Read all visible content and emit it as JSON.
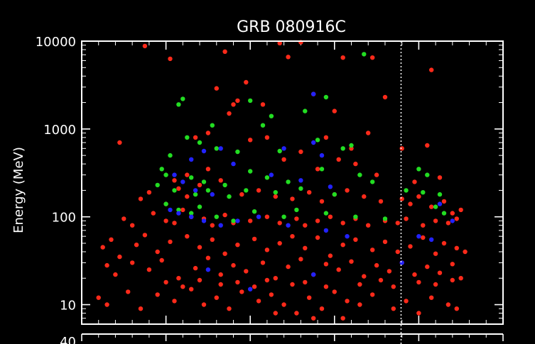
{
  "chart_data": {
    "type": "scatter",
    "title": "GRB 080916C",
    "xlabel": "",
    "ylabel": "Energy (MeV)",
    "y_scale": "log",
    "ylim": [
      6,
      10000
    ],
    "y_ticks": [
      {
        "value": 10000,
        "label": "10000"
      },
      {
        "value": 1000,
        "label": "1000"
      },
      {
        "value": 100,
        "label": "100"
      },
      {
        "value": 10,
        "label": "10"
      }
    ],
    "bottom_partial_label": "40",
    "xlim": [
      0,
      1
    ],
    "marker_line_x": 0.758,
    "grid": false,
    "legend": "none",
    "colors": {
      "background": "#000000",
      "frame": "#ffffff",
      "red_series": "#ff2a1a",
      "green_series": "#22dd22",
      "blue_series": "#2222ff"
    },
    "series": [
      {
        "color": "#ff2a1a",
        "points": [
          [
            0.15,
            8800
          ],
          [
            0.21,
            6300
          ],
          [
            0.34,
            7600
          ],
          [
            0.47,
            9500
          ],
          [
            0.52,
            9700
          ],
          [
            0.49,
            6600
          ],
          [
            0.62,
            6500
          ],
          [
            0.69,
            6500
          ],
          [
            0.83,
            4700
          ],
          [
            0.39,
            3400
          ],
          [
            0.32,
            2900
          ],
          [
            0.37,
            2100
          ],
          [
            0.43,
            1900
          ],
          [
            0.55,
            2500
          ],
          [
            0.72,
            2300
          ],
          [
            0.6,
            1600
          ],
          [
            0.35,
            1500
          ],
          [
            0.36,
            1900
          ],
          [
            0.09,
            700
          ],
          [
            0.76,
            600
          ],
          [
            0.82,
            650
          ],
          [
            0.68,
            900
          ],
          [
            0.58,
            800
          ],
          [
            0.4,
            750
          ],
          [
            0.27,
            800
          ],
          [
            0.3,
            900
          ],
          [
            0.44,
            800
          ],
          [
            0.52,
            550
          ],
          [
            0.56,
            350
          ],
          [
            0.65,
            400
          ],
          [
            0.7,
            300
          ],
          [
            0.79,
            250
          ],
          [
            0.85,
            280
          ],
          [
            0.64,
            600
          ],
          [
            0.48,
            450
          ],
          [
            0.61,
            450
          ],
          [
            0.14,
            160
          ],
          [
            0.16,
            190
          ],
          [
            0.23,
            210
          ],
          [
            0.25,
            170
          ],
          [
            0.28,
            230
          ],
          [
            0.33,
            260
          ],
          [
            0.38,
            180
          ],
          [
            0.42,
            200
          ],
          [
            0.46,
            170
          ],
          [
            0.5,
            160
          ],
          [
            0.54,
            190
          ],
          [
            0.57,
            150
          ],
          [
            0.6,
            180
          ],
          [
            0.63,
            200
          ],
          [
            0.67,
            170
          ],
          [
            0.71,
            150
          ],
          [
            0.76,
            160
          ],
          [
            0.78,
            140
          ],
          [
            0.8,
            170
          ],
          [
            0.83,
            130
          ],
          [
            0.86,
            150
          ],
          [
            0.88,
            110
          ],
          [
            0.9,
            120
          ],
          [
            0.1,
            95
          ],
          [
            0.12,
            80
          ],
          [
            0.17,
            110
          ],
          [
            0.2,
            90
          ],
          [
            0.22,
            85
          ],
          [
            0.24,
            120
          ],
          [
            0.26,
            100
          ],
          [
            0.29,
            95
          ],
          [
            0.31,
            80
          ],
          [
            0.34,
            105
          ],
          [
            0.36,
            85
          ],
          [
            0.4,
            90
          ],
          [
            0.44,
            100
          ],
          [
            0.47,
            85
          ],
          [
            0.51,
            95
          ],
          [
            0.53,
            80
          ],
          [
            0.56,
            90
          ],
          [
            0.59,
            100
          ],
          [
            0.62,
            85
          ],
          [
            0.65,
            95
          ],
          [
            0.68,
            80
          ],
          [
            0.72,
            90
          ],
          [
            0.75,
            85
          ],
          [
            0.77,
            95
          ],
          [
            0.81,
            80
          ],
          [
            0.84,
            90
          ],
          [
            0.87,
            85
          ],
          [
            0.89,
            95
          ],
          [
            0.05,
            45
          ],
          [
            0.07,
            55
          ],
          [
            0.09,
            35
          ],
          [
            0.13,
            48
          ],
          [
            0.15,
            62
          ],
          [
            0.18,
            40
          ],
          [
            0.21,
            52
          ],
          [
            0.25,
            60
          ],
          [
            0.28,
            45
          ],
          [
            0.31,
            55
          ],
          [
            0.34,
            38
          ],
          [
            0.37,
            48
          ],
          [
            0.41,
            56
          ],
          [
            0.44,
            42
          ],
          [
            0.47,
            50
          ],
          [
            0.5,
            60
          ],
          [
            0.53,
            44
          ],
          [
            0.56,
            58
          ],
          [
            0.59,
            36
          ],
          [
            0.62,
            48
          ],
          [
            0.65,
            55
          ],
          [
            0.69,
            42
          ],
          [
            0.72,
            52
          ],
          [
            0.75,
            40
          ],
          [
            0.78,
            46
          ],
          [
            0.81,
            58
          ],
          [
            0.84,
            38
          ],
          [
            0.86,
            50
          ],
          [
            0.89,
            44
          ],
          [
            0.91,
            40
          ],
          [
            0.06,
            28
          ],
          [
            0.08,
            22
          ],
          [
            0.12,
            30
          ],
          [
            0.16,
            25
          ],
          [
            0.19,
            32
          ],
          [
            0.23,
            20
          ],
          [
            0.27,
            26
          ],
          [
            0.3,
            34
          ],
          [
            0.33,
            22
          ],
          [
            0.36,
            28
          ],
          [
            0.39,
            24
          ],
          [
            0.43,
            30
          ],
          [
            0.46,
            20
          ],
          [
            0.49,
            27
          ],
          [
            0.52,
            33
          ],
          [
            0.55,
            22
          ],
          [
            0.58,
            29
          ],
          [
            0.61,
            25
          ],
          [
            0.64,
            31
          ],
          [
            0.67,
            21
          ],
          [
            0.7,
            28
          ],
          [
            0.73,
            24
          ],
          [
            0.76,
            30
          ],
          [
            0.79,
            22
          ],
          [
            0.82,
            27
          ],
          [
            0.85,
            23
          ],
          [
            0.88,
            29
          ],
          [
            0.9,
            20
          ],
          [
            0.04,
            12
          ],
          [
            0.06,
            10
          ],
          [
            0.11,
            14
          ],
          [
            0.14,
            9
          ],
          [
            0.18,
            13
          ],
          [
            0.22,
            11
          ],
          [
            0.26,
            15
          ],
          [
            0.29,
            10
          ],
          [
            0.32,
            12
          ],
          [
            0.35,
            9
          ],
          [
            0.38,
            14
          ],
          [
            0.42,
            11
          ],
          [
            0.45,
            13
          ],
          [
            0.48,
            10
          ],
          [
            0.51,
            8
          ],
          [
            0.54,
            12
          ],
          [
            0.57,
            9
          ],
          [
            0.6,
            14
          ],
          [
            0.63,
            11
          ],
          [
            0.66,
            10
          ],
          [
            0.69,
            13
          ],
          [
            0.74,
            9
          ],
          [
            0.77,
            11
          ],
          [
            0.8,
            8
          ],
          [
            0.83,
            12
          ],
          [
            0.87,
            10
          ],
          [
            0.89,
            9
          ],
          [
            0.46,
            8
          ],
          [
            0.55,
            7
          ],
          [
            0.62,
            7
          ],
          [
            0.2,
            18
          ],
          [
            0.24,
            16
          ],
          [
            0.28,
            19
          ],
          [
            0.33,
            17
          ],
          [
            0.37,
            18
          ],
          [
            0.41,
            16
          ],
          [
            0.44,
            19
          ],
          [
            0.5,
            17
          ],
          [
            0.53,
            18
          ],
          [
            0.58,
            16
          ],
          [
            0.66,
            17
          ],
          [
            0.71,
            19
          ],
          [
            0.74,
            16
          ],
          [
            0.8,
            18
          ],
          [
            0.84,
            17
          ],
          [
            0.88,
            19
          ],
          [
            0.2,
            140
          ],
          [
            0.22,
            260
          ],
          [
            0.25,
            300
          ],
          [
            0.3,
            350
          ]
        ]
      },
      {
        "color": "#22dd22",
        "points": [
          [
            0.67,
            7100
          ],
          [
            0.24,
            2200
          ],
          [
            0.4,
            2100
          ],
          [
            0.23,
            1900
          ],
          [
            0.58,
            2300
          ],
          [
            0.53,
            1600
          ],
          [
            0.45,
            1400
          ],
          [
            0.43,
            1100
          ],
          [
            0.31,
            1100
          ],
          [
            0.25,
            800
          ],
          [
            0.28,
            700
          ],
          [
            0.32,
            600
          ],
          [
            0.37,
            550
          ],
          [
            0.21,
            500
          ],
          [
            0.47,
            560
          ],
          [
            0.56,
            750
          ],
          [
            0.62,
            600
          ],
          [
            0.64,
            650
          ],
          [
            0.19,
            350
          ],
          [
            0.2,
            300
          ],
          [
            0.26,
            280
          ],
          [
            0.29,
            250
          ],
          [
            0.34,
            230
          ],
          [
            0.4,
            330
          ],
          [
            0.44,
            280
          ],
          [
            0.49,
            250
          ],
          [
            0.57,
            350
          ],
          [
            0.66,
            300
          ],
          [
            0.69,
            250
          ],
          [
            0.8,
            350
          ],
          [
            0.82,
            300
          ],
          [
            0.18,
            230
          ],
          [
            0.22,
            200
          ],
          [
            0.27,
            180
          ],
          [
            0.3,
            200
          ],
          [
            0.35,
            170
          ],
          [
            0.39,
            200
          ],
          [
            0.46,
            190
          ],
          [
            0.52,
            210
          ],
          [
            0.6,
            180
          ],
          [
            0.77,
            200
          ],
          [
            0.81,
            190
          ],
          [
            0.85,
            180
          ],
          [
            0.2,
            140
          ],
          [
            0.23,
            120
          ],
          [
            0.26,
            110
          ],
          [
            0.28,
            130
          ],
          [
            0.32,
            100
          ],
          [
            0.36,
            90
          ],
          [
            0.41,
            115
          ],
          [
            0.48,
            100
          ],
          [
            0.51,
            120
          ],
          [
            0.58,
            110
          ],
          [
            0.65,
            100
          ],
          [
            0.72,
            95
          ],
          [
            0.84,
            130
          ],
          [
            0.86,
            110
          ]
        ]
      },
      {
        "color": "#2222ff",
        "points": [
          [
            0.55,
            2500
          ],
          [
            0.55,
            700
          ],
          [
            0.48,
            600
          ],
          [
            0.57,
            500
          ],
          [
            0.29,
            560
          ],
          [
            0.33,
            600
          ],
          [
            0.26,
            450
          ],
          [
            0.36,
            400
          ],
          [
            0.22,
            300
          ],
          [
            0.24,
            250
          ],
          [
            0.27,
            200
          ],
          [
            0.31,
            180
          ],
          [
            0.45,
            300
          ],
          [
            0.52,
            260
          ],
          [
            0.59,
            220
          ],
          [
            0.21,
            120
          ],
          [
            0.23,
            110
          ],
          [
            0.26,
            100
          ],
          [
            0.29,
            90
          ],
          [
            0.33,
            80
          ],
          [
            0.37,
            90
          ],
          [
            0.42,
            100
          ],
          [
            0.49,
            80
          ],
          [
            0.58,
            70
          ],
          [
            0.63,
            60
          ],
          [
            0.76,
            30
          ],
          [
            0.8,
            60
          ],
          [
            0.83,
            55
          ],
          [
            0.88,
            90
          ],
          [
            0.85,
            140
          ],
          [
            0.55,
            22
          ],
          [
            0.3,
            25
          ],
          [
            0.4,
            15
          ]
        ]
      }
    ]
  }
}
